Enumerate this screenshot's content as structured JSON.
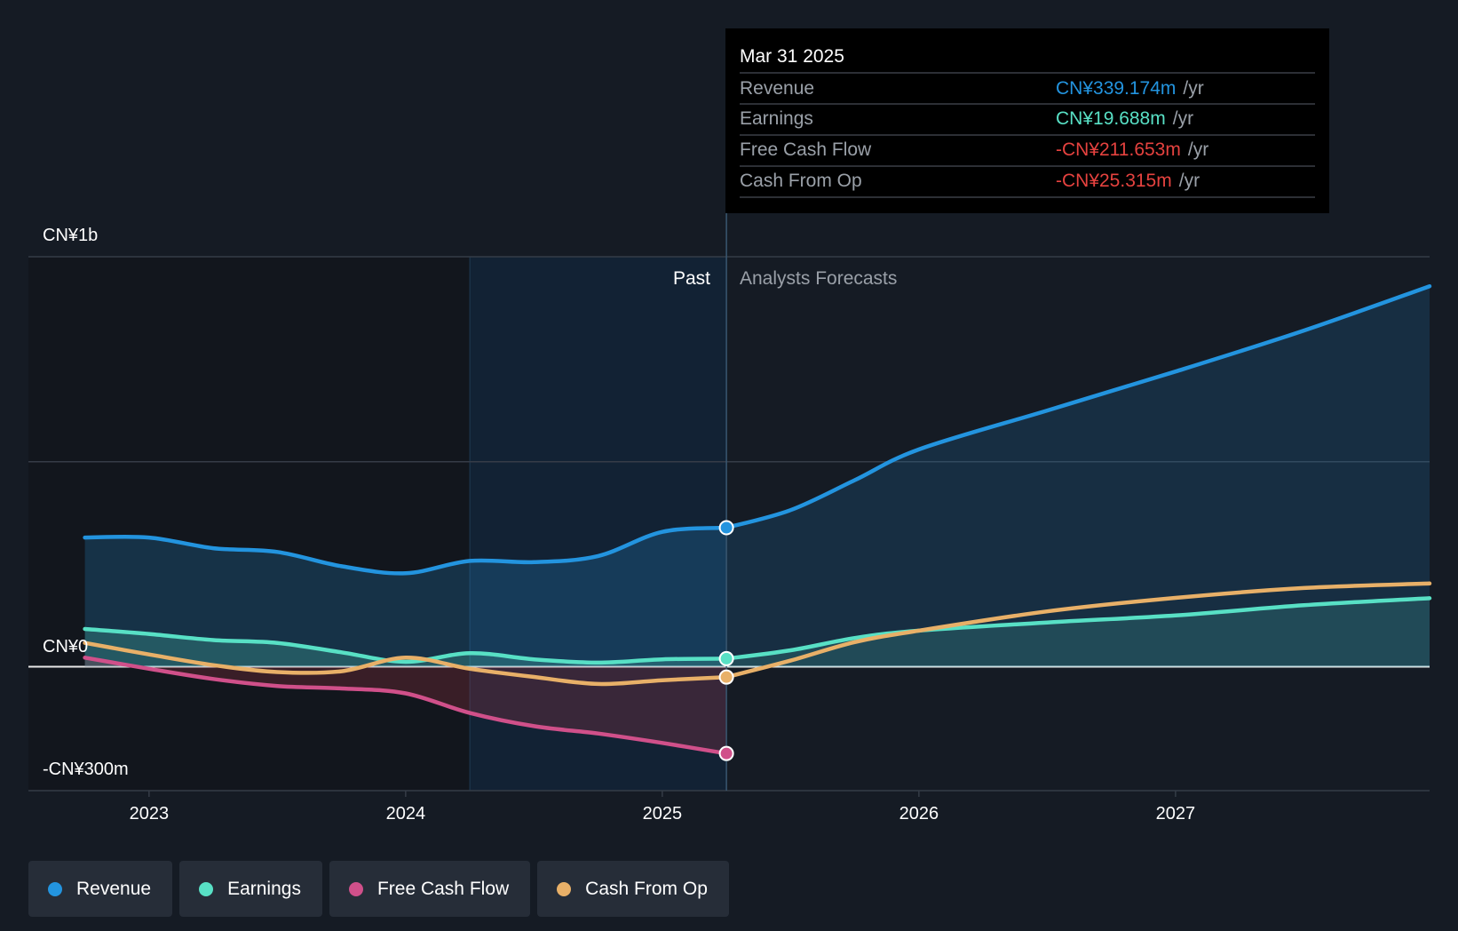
{
  "chart_data": {
    "type": "line",
    "title": "",
    "x_unit": "year",
    "xlim": [
      2022.53,
      2027.99
    ],
    "ylim": [
      -300,
      1000
    ],
    "y_unit": "CN¥m",
    "y_tick_labels": [
      {
        "value": 1000,
        "label": "CN¥1b"
      },
      {
        "value": 0,
        "label": "CN¥0"
      },
      {
        "value": -300,
        "label": "-CN¥300m"
      }
    ],
    "gridlines": [
      1000,
      500,
      0
    ],
    "x_ticks": [
      {
        "value": 2023,
        "label": "2023"
      },
      {
        "value": 2024,
        "label": "2024"
      },
      {
        "value": 2025,
        "label": "2025"
      },
      {
        "value": 2026,
        "label": "2026"
      },
      {
        "value": 2027,
        "label": "2027"
      }
    ],
    "past_label": "Past",
    "forecast_label": "Analysts Forecasts",
    "past_end": 2025.25,
    "highlight_start": 2024.25,
    "series": [
      {
        "name": "Revenue",
        "color": "#2394df",
        "fill": true,
        "fill_color": "#2394df",
        "past_points": [
          [
            2022.75,
            315
          ],
          [
            2023.0,
            315
          ],
          [
            2023.25,
            289
          ],
          [
            2023.5,
            280
          ],
          [
            2023.75,
            245
          ],
          [
            2024.0,
            228
          ],
          [
            2024.25,
            258
          ],
          [
            2024.5,
            255
          ],
          [
            2024.75,
            270
          ],
          [
            2025.0,
            329
          ],
          [
            2025.25,
            339.174
          ]
        ],
        "forecast_points": [
          [
            2025.25,
            339.174
          ],
          [
            2025.5,
            382
          ],
          [
            2025.75,
            455
          ],
          [
            2026.0,
            530
          ],
          [
            2026.5,
            625
          ],
          [
            2027.0,
            720
          ],
          [
            2027.5,
            820
          ],
          [
            2027.99,
            928
          ]
        ]
      },
      {
        "name": "Earnings",
        "color": "#58e0c5",
        "fill": true,
        "fill_color": "#58e0c5",
        "past_points": [
          [
            2022.75,
            92
          ],
          [
            2023.0,
            80
          ],
          [
            2023.25,
            65
          ],
          [
            2023.5,
            58
          ],
          [
            2023.75,
            35
          ],
          [
            2024.0,
            12
          ],
          [
            2024.25,
            33
          ],
          [
            2024.5,
            18
          ],
          [
            2024.75,
            10
          ],
          [
            2025.0,
            18
          ],
          [
            2025.25,
            19.688
          ]
        ],
        "forecast_points": [
          [
            2025.25,
            19.688
          ],
          [
            2025.5,
            40
          ],
          [
            2025.75,
            70
          ],
          [
            2026.0,
            88
          ],
          [
            2026.5,
            108
          ],
          [
            2027.0,
            125
          ],
          [
            2027.5,
            150
          ],
          [
            2027.99,
            167
          ]
        ]
      },
      {
        "name": "Free Cash Flow",
        "color": "#d0508a",
        "fill": true,
        "fill_color": "#c23a4d",
        "past_points": [
          [
            2022.75,
            22
          ],
          [
            2023.0,
            -5
          ],
          [
            2023.25,
            -30
          ],
          [
            2023.5,
            -47
          ],
          [
            2023.75,
            -53
          ],
          [
            2024.0,
            -65
          ],
          [
            2024.25,
            -113
          ],
          [
            2024.5,
            -145
          ],
          [
            2024.75,
            -163
          ],
          [
            2025.0,
            -186
          ],
          [
            2025.25,
            -211.653
          ]
        ],
        "forecast_points": []
      },
      {
        "name": "Cash From Op",
        "color": "#e8b068",
        "fill": false,
        "past_points": [
          [
            2022.75,
            58
          ],
          [
            2023.0,
            30
          ],
          [
            2023.25,
            4
          ],
          [
            2023.5,
            -13
          ],
          [
            2023.75,
            -11
          ],
          [
            2024.0,
            22
          ],
          [
            2024.25,
            -5
          ],
          [
            2024.5,
            -25
          ],
          [
            2024.75,
            -42
          ],
          [
            2025.0,
            -33
          ],
          [
            2025.25,
            -25.315
          ]
        ],
        "forecast_points": [
          [
            2025.25,
            -25.315
          ],
          [
            2025.5,
            15
          ],
          [
            2025.75,
            60
          ],
          [
            2026.0,
            88
          ],
          [
            2026.5,
            135
          ],
          [
            2027.0,
            168
          ],
          [
            2027.5,
            192
          ],
          [
            2027.99,
            203
          ]
        ]
      }
    ],
    "tooltip": {
      "date": "Mar 31 2025",
      "rows": [
        {
          "label": "Revenue",
          "value": "CN¥339.174m",
          "unit": "/yr",
          "color": "#2394df"
        },
        {
          "label": "Earnings",
          "value": "CN¥19.688m",
          "unit": "/yr",
          "color": "#58e0c5"
        },
        {
          "label": "Free Cash Flow",
          "value": "-CN¥211.653m",
          "unit": "/yr",
          "color": "#e5423f"
        },
        {
          "label": "Cash From Op",
          "value": "-CN¥25.315m",
          "unit": "/yr",
          "color": "#e5423f"
        }
      ]
    }
  },
  "legend": {
    "items": [
      {
        "label": "Revenue",
        "color": "#2394df"
      },
      {
        "label": "Earnings",
        "color": "#58e0c5"
      },
      {
        "label": "Free Cash Flow",
        "color": "#d0508a"
      },
      {
        "label": "Cash From Op",
        "color": "#e8b068"
      }
    ]
  },
  "theme": {
    "background": "#151b24",
    "past_region": "#12161d",
    "highlight_region": "#132538",
    "grid": "#353c47",
    "zero_line": "#e8e8e8",
    "text": "#ffffff",
    "muted_text": "#9aa0a8",
    "tooltip_bg": "#000000"
  }
}
